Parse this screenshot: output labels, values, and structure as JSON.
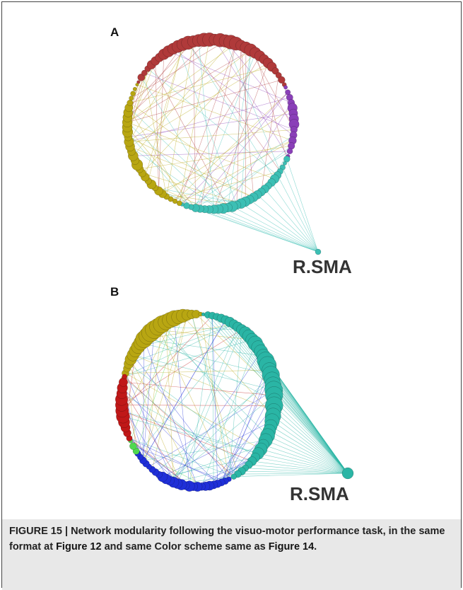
{
  "panels": [
    {
      "label": "A",
      "node_label": "R.SMA"
    },
    {
      "label": "B",
      "node_label": "R.SMA"
    }
  ],
  "caption": {
    "label": "FIGURE 15 |",
    "text": "Network modularity following the visuo-motor performance task, in the same format at",
    "ref1": "Figure 12",
    "middle": "and same Color scheme same as",
    "ref2": "Figure 14",
    "end": "."
  }
}
